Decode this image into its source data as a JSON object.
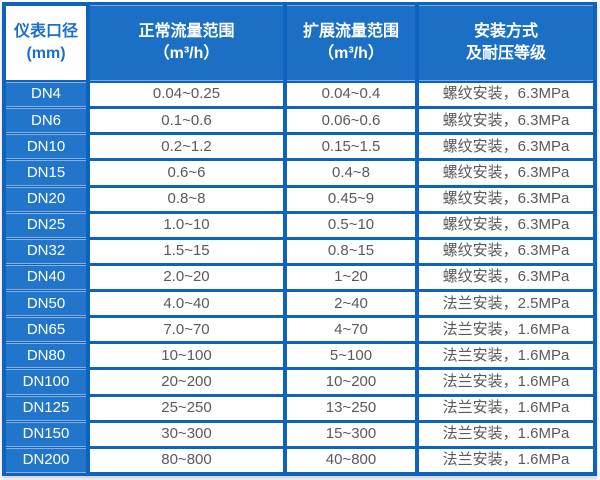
{
  "table": {
    "colors": {
      "grid_blue": "#0d63bd",
      "header_blue": "#1b70c6",
      "row_label_blue": "#2176cb",
      "cell_text_gray": "#58595b",
      "header_text_white": "#ffffff"
    },
    "headers": [
      {
        "line1": "仪表口径",
        "line2": "(mm)"
      },
      {
        "line1": "正常流量范围",
        "line2": "（m³/h）"
      },
      {
        "line1": "扩展流量范围",
        "line2": "（m³/h）"
      },
      {
        "line1": "安装方式",
        "line2": "及耐压等级"
      }
    ],
    "rows": [
      {
        "dn": "DN4",
        "normal": "0.04~0.25",
        "extended": "0.04~0.4",
        "install": "螺纹安装，6.3MPa"
      },
      {
        "dn": "DN6",
        "normal": "0.1~0.6",
        "extended": "0.06~0.6",
        "install": "螺纹安装，6.3MPa"
      },
      {
        "dn": "DN10",
        "normal": "0.2~1.2",
        "extended": "0.15~1.5",
        "install": "螺纹安装，6.3MPa"
      },
      {
        "dn": "DN15",
        "normal": "0.6~6",
        "extended": "0.4~8",
        "install": "螺纹安装，6.3MPa"
      },
      {
        "dn": "DN20",
        "normal": "0.8~8",
        "extended": "0.45~9",
        "install": "螺纹安装，6.3MPa"
      },
      {
        "dn": "DN25",
        "normal": "1.0~10",
        "extended": "0.5~10",
        "install": "螺纹安装，6.3MPa"
      },
      {
        "dn": "DN32",
        "normal": "1.5~15",
        "extended": "0.8~15",
        "install": "螺纹安装，6.3MPa"
      },
      {
        "dn": "DN40",
        "normal": "2.0~20",
        "extended": "1~20",
        "install": "螺纹安装，6.3MPa"
      },
      {
        "dn": "DN50",
        "normal": "4.0~40",
        "extended": "2~40",
        "install": "法兰安装，2.5MPa"
      },
      {
        "dn": "DN65",
        "normal": "7.0~70",
        "extended": "4~70",
        "install": "法兰安装，1.6MPa"
      },
      {
        "dn": "DN80",
        "normal": "10~100",
        "extended": "5~100",
        "install": "法兰安装，1.6MPa"
      },
      {
        "dn": "DN100",
        "normal": "20~200",
        "extended": "10~200",
        "install": "法兰安装，1.6MPa"
      },
      {
        "dn": "DN125",
        "normal": "25~250",
        "extended": "13~250",
        "install": "法兰安装，1.6MPa"
      },
      {
        "dn": "DN150",
        "normal": "30~300",
        "extended": "15~300",
        "install": "法兰安装，1.6MPa"
      },
      {
        "dn": "DN200",
        "normal": "80~800",
        "extended": "40~800",
        "install": "法兰安装，1.6MPa"
      }
    ]
  }
}
